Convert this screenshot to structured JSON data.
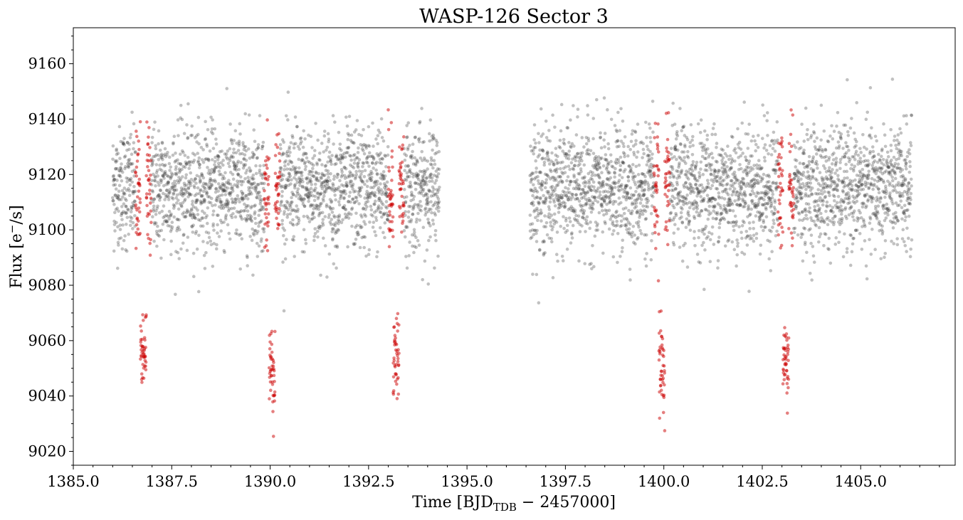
{
  "chart_data": {
    "type": "scatter",
    "title": "WASP-126 Sector 3",
    "xlabel": {
      "prefix": "Time [BJD",
      "subscript": "TDB",
      "suffix": " − 2457000]"
    },
    "ylabel": {
      "prefix": "Flux [e",
      "superscript": "−",
      "suffix": "/s]"
    },
    "xlim": [
      1385.0,
      1407.4
    ],
    "ylim": [
      9015,
      9173
    ],
    "xticks": [
      1385.0,
      1387.5,
      1390.0,
      1392.5,
      1395.0,
      1397.5,
      1400.0,
      1402.5,
      1405.0
    ],
    "xtick_labels": [
      "1385.0",
      "1387.5",
      "1390.0",
      "1392.5",
      "1395.0",
      "1397.5",
      "1400.0",
      "1402.5",
      "1405.0"
    ],
    "yticks": [
      9020,
      9040,
      9060,
      9080,
      9100,
      9120,
      9140,
      9160
    ],
    "ytick_labels": [
      "9020",
      "9040",
      "9060",
      "9080",
      "9100",
      "9120",
      "9140",
      "9160"
    ],
    "grid": false,
    "series": [
      {
        "color": "#333333",
        "opacity": 0.3,
        "segments": [
          [
            1386.0,
            1394.3
          ],
          [
            1396.6,
            1406.3
          ]
        ],
        "baseline": 9115,
        "scatter_std": 11
      },
      {
        "color": "#cc0000",
        "opacity": 0.5,
        "transits": [
          {
            "center": 1386.78,
            "half_width": 0.2,
            "depth": 58
          },
          {
            "center": 1390.05,
            "half_width": 0.2,
            "depth": 65
          },
          {
            "center": 1393.2,
            "half_width": 0.2,
            "depth": 60
          },
          {
            "center": 1399.95,
            "half_width": 0.2,
            "depth": 64
          },
          {
            "center": 1403.1,
            "half_width": 0.2,
            "depth": 62
          }
        ]
      }
    ]
  }
}
